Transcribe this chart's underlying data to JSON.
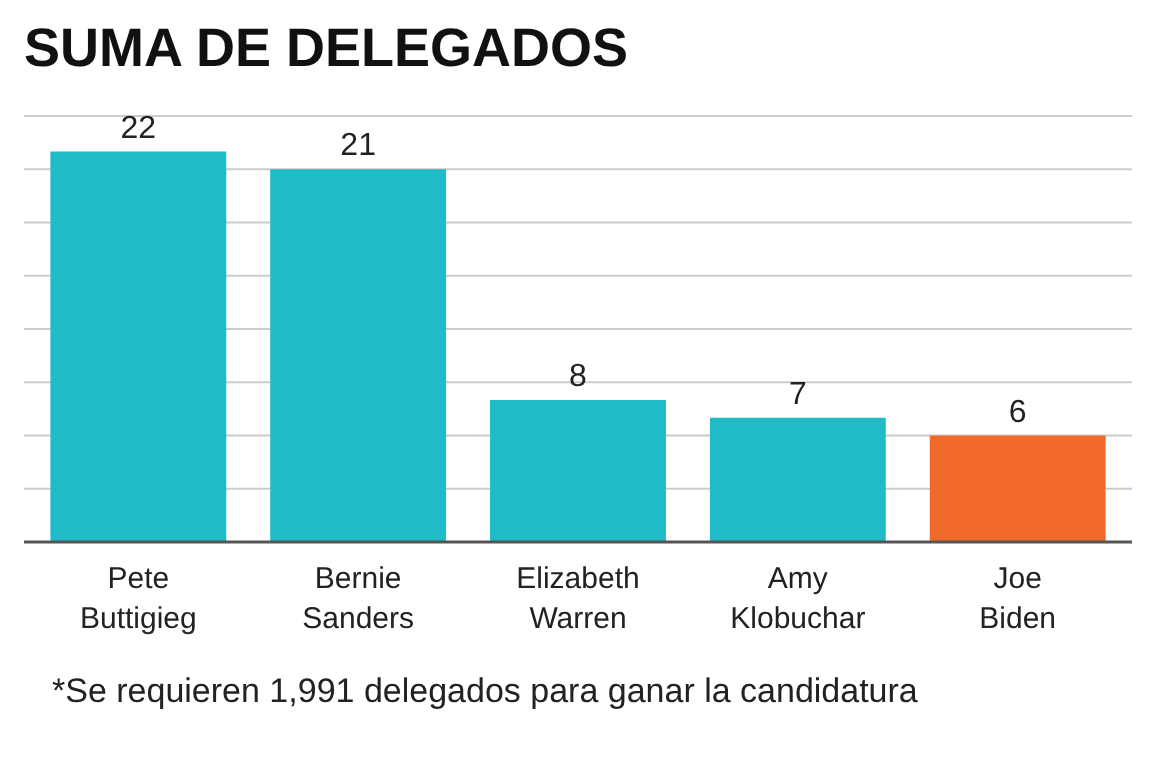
{
  "chart_data": {
    "type": "bar",
    "title": "SUMA DE DELEGADOS",
    "categories": [
      "Pete Buttigieg",
      "Bernie Sanders",
      "Elizabeth Warren",
      "Amy Klobuchar",
      "Joe Biden"
    ],
    "values": [
      22,
      21,
      8,
      7,
      6
    ],
    "colors": [
      "#1fbcc8",
      "#1fbcc8",
      "#1fbcc8",
      "#1fbcc8",
      "#f26a2b"
    ],
    "data_labels": true,
    "ylim": [
      0,
      24
    ],
    "yticks": [
      {
        "value": 0,
        "label": null
      },
      {
        "value": 3,
        "label": null
      },
      {
        "value": 6,
        "label": null
      },
      {
        "value": 9,
        "label": null
      },
      {
        "value": 12,
        "label": null
      },
      {
        "value": 15,
        "label": null
      },
      {
        "value": 18,
        "label": null
      },
      {
        "value": 21,
        "label": null
      },
      {
        "value": 24,
        "label": null
      }
    ],
    "grid": "y",
    "annotations": [
      "*Se requieren 1,991 delegados para ganar la candidatura"
    ]
  }
}
